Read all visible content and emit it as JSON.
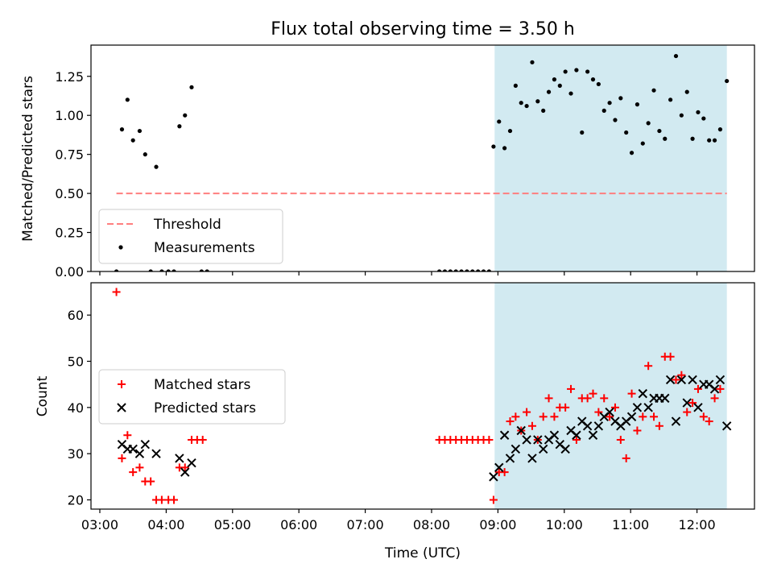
{
  "figure": {
    "title": "Flux total observing time = 3.50 h",
    "colors": {
      "shade": "#add8e6",
      "threshold": "#ff7f7f",
      "measure": "#000000",
      "matched": "#ff0000",
      "predicted": "#000000"
    }
  },
  "chart_data": [
    {
      "type": "scatter",
      "ylabel": "Matched/Predicted stars",
      "xlim": [
        "02:52",
        "12:52"
      ],
      "ylim": [
        0,
        1.45
      ],
      "yticks": [
        0.0,
        0.25,
        0.5,
        0.75,
        1.0,
        1.25
      ],
      "ytick_labels": [
        "0.00",
        "0.25",
        "0.50",
        "0.75",
        "1.00",
        "1.25"
      ],
      "shaded_span": [
        "08:57",
        "12:27"
      ],
      "legend": {
        "placement": "lower-left",
        "entries": [
          "Threshold",
          "Measurements"
        ]
      },
      "threshold": {
        "name": "Threshold",
        "y": 0.5,
        "x": [
          "03:15",
          "12:27"
        ]
      },
      "series": [
        {
          "name": "Measurements",
          "points": [
            [
              "03:15",
              0
            ],
            [
              "03:20",
              0.91
            ],
            [
              "03:25",
              1.1
            ],
            [
              "03:30",
              0.84
            ],
            [
              "03:36",
              0.9
            ],
            [
              "03:41",
              0.75
            ],
            [
              "03:46",
              0
            ],
            [
              "03:51",
              0.67
            ],
            [
              "03:56",
              0
            ],
            [
              "04:02",
              0
            ],
            [
              "04:07",
              0
            ],
            [
              "04:12",
              0.93
            ],
            [
              "04:17",
              1.0
            ],
            [
              "04:23",
              1.18
            ],
            [
              "04:32",
              0
            ],
            [
              "04:37",
              0
            ],
            [
              "08:07",
              0
            ],
            [
              "08:12",
              0
            ],
            [
              "08:17",
              0
            ],
            [
              "08:22",
              0
            ],
            [
              "08:27",
              0
            ],
            [
              "08:32",
              0
            ],
            [
              "08:37",
              0
            ],
            [
              "08:42",
              0
            ],
            [
              "08:47",
              0
            ],
            [
              "08:52",
              0
            ],
            [
              "08:56",
              0.8
            ],
            [
              "09:01",
              0.96
            ],
            [
              "09:06",
              0.79
            ],
            [
              "09:11",
              0.9
            ],
            [
              "09:16",
              1.19
            ],
            [
              "09:21",
              1.08
            ],
            [
              "09:26",
              1.06
            ],
            [
              "09:31",
              1.34
            ],
            [
              "09:36",
              1.09
            ],
            [
              "09:41",
              1.03
            ],
            [
              "09:46",
              1.15
            ],
            [
              "09:51",
              1.23
            ],
            [
              "09:56",
              1.19
            ],
            [
              "10:01",
              1.28
            ],
            [
              "10:06",
              1.14
            ],
            [
              "10:11",
              1.29
            ],
            [
              "10:16",
              0.89
            ],
            [
              "10:21",
              1.28
            ],
            [
              "10:26",
              1.23
            ],
            [
              "10:31",
              1.2
            ],
            [
              "10:36",
              1.03
            ],
            [
              "10:41",
              1.08
            ],
            [
              "10:46",
              0.97
            ],
            [
              "10:51",
              1.11
            ],
            [
              "10:56",
              0.89
            ],
            [
              "11:01",
              0.76
            ],
            [
              "11:06",
              1.07
            ],
            [
              "11:11",
              0.82
            ],
            [
              "11:16",
              0.95
            ],
            [
              "11:21",
              1.16
            ],
            [
              "11:26",
              0.9
            ],
            [
              "11:31",
              0.85
            ],
            [
              "11:36",
              1.1
            ],
            [
              "11:41",
              1.38
            ],
            [
              "11:46",
              1.0
            ],
            [
              "11:51",
              1.15
            ],
            [
              "11:56",
              0.85
            ],
            [
              "12:01",
              1.02
            ],
            [
              "12:06",
              0.98
            ],
            [
              "12:11",
              0.84
            ],
            [
              "12:16",
              0.84
            ],
            [
              "12:21",
              0.91
            ],
            [
              "12:27",
              1.22
            ]
          ]
        }
      ]
    },
    {
      "type": "scatter",
      "xlabel": "Time (UTC)",
      "ylabel": "Count",
      "xlim": [
        "02:52",
        "12:52"
      ],
      "xticks": [
        "03:00",
        "04:00",
        "05:00",
        "06:00",
        "07:00",
        "08:00",
        "09:00",
        "10:00",
        "11:00",
        "12:00"
      ],
      "ylim": [
        18,
        67
      ],
      "yticks": [
        20,
        30,
        40,
        50,
        60
      ],
      "ytick_labels": [
        "20",
        "30",
        "40",
        "50",
        "60"
      ],
      "shaded_span": [
        "08:57",
        "12:27"
      ],
      "legend": {
        "placement": "center-left",
        "entries": [
          "Matched stars",
          "Predicted stars"
        ]
      },
      "series": [
        {
          "name": "Matched stars",
          "marker": "plus",
          "points": [
            [
              "03:15",
              65
            ],
            [
              "03:20",
              29
            ],
            [
              "03:25",
              34
            ],
            [
              "03:30",
              26
            ],
            [
              "03:36",
              27
            ],
            [
              "03:41",
              24
            ],
            [
              "03:46",
              24
            ],
            [
              "03:51",
              20
            ],
            [
              "03:56",
              20
            ],
            [
              "04:02",
              20
            ],
            [
              "04:07",
              20
            ],
            [
              "04:12",
              27
            ],
            [
              "04:17",
              27
            ],
            [
              "04:23",
              33
            ],
            [
              "04:28",
              33
            ],
            [
              "04:33",
              33
            ],
            [
              "08:07",
              33
            ],
            [
              "08:12",
              33
            ],
            [
              "08:17",
              33
            ],
            [
              "08:22",
              33
            ],
            [
              "08:27",
              33
            ],
            [
              "08:32",
              33
            ],
            [
              "08:37",
              33
            ],
            [
              "08:42",
              33
            ],
            [
              "08:47",
              33
            ],
            [
              "08:52",
              33
            ],
            [
              "08:56",
              20
            ],
            [
              "09:01",
              26
            ],
            [
              "09:06",
              26
            ],
            [
              "09:11",
              37
            ],
            [
              "09:16",
              38
            ],
            [
              "09:21",
              35
            ],
            [
              "09:26",
              39
            ],
            [
              "09:31",
              36
            ],
            [
              "09:36",
              33
            ],
            [
              "09:41",
              38
            ],
            [
              "09:46",
              42
            ],
            [
              "09:51",
              38
            ],
            [
              "09:56",
              40
            ],
            [
              "10:01",
              40
            ],
            [
              "10:06",
              44
            ],
            [
              "10:11",
              33
            ],
            [
              "10:16",
              42
            ],
            [
              "10:21",
              42
            ],
            [
              "10:26",
              43
            ],
            [
              "10:31",
              39
            ],
            [
              "10:36",
              42
            ],
            [
              "10:41",
              38
            ],
            [
              "10:46",
              40
            ],
            [
              "10:51",
              33
            ],
            [
              "10:56",
              29
            ],
            [
              "11:01",
              43
            ],
            [
              "11:06",
              35
            ],
            [
              "11:11",
              38
            ],
            [
              "11:16",
              49
            ],
            [
              "11:21",
              38
            ],
            [
              "11:26",
              36
            ],
            [
              "11:31",
              51
            ],
            [
              "11:36",
              51
            ],
            [
              "11:41",
              46
            ],
            [
              "11:46",
              47
            ],
            [
              "11:51",
              39
            ],
            [
              "11:56",
              41
            ],
            [
              "12:01",
              44
            ],
            [
              "12:06",
              38
            ],
            [
              "12:11",
              37
            ],
            [
              "12:16",
              42
            ],
            [
              "12:21",
              44
            ]
          ]
        },
        {
          "name": "Predicted stars",
          "marker": "x",
          "points": [
            [
              "03:20",
              32
            ],
            [
              "03:25",
              31
            ],
            [
              "03:30",
              31
            ],
            [
              "03:36",
              30
            ],
            [
              "03:41",
              32
            ],
            [
              "03:51",
              30
            ],
            [
              "04:12",
              29
            ],
            [
              "04:17",
              26
            ],
            [
              "04:23",
              28
            ],
            [
              "08:56",
              25
            ],
            [
              "09:01",
              27
            ],
            [
              "09:06",
              34
            ],
            [
              "09:11",
              29
            ],
            [
              "09:16",
              31
            ],
            [
              "09:21",
              35
            ],
            [
              "09:26",
              33
            ],
            [
              "09:31",
              29
            ],
            [
              "09:36",
              33
            ],
            [
              "09:41",
              31
            ],
            [
              "09:46",
              33
            ],
            [
              "09:51",
              34
            ],
            [
              "09:56",
              32
            ],
            [
              "10:01",
              31
            ],
            [
              "10:06",
              35
            ],
            [
              "10:11",
              34
            ],
            [
              "10:16",
              37
            ],
            [
              "10:21",
              36
            ],
            [
              "10:26",
              34
            ],
            [
              "10:31",
              36
            ],
            [
              "10:36",
              38
            ],
            [
              "10:41",
              39
            ],
            [
              "10:46",
              37
            ],
            [
              "10:51",
              36
            ],
            [
              "10:56",
              37
            ],
            [
              "11:01",
              38
            ],
            [
              "11:06",
              40
            ],
            [
              "11:11",
              43
            ],
            [
              "11:16",
              40
            ],
            [
              "11:21",
              42
            ],
            [
              "11:26",
              42
            ],
            [
              "11:31",
              42
            ],
            [
              "11:36",
              46
            ],
            [
              "11:41",
              37
            ],
            [
              "11:46",
              46
            ],
            [
              "11:51",
              41
            ],
            [
              "11:56",
              46
            ],
            [
              "12:01",
              40
            ],
            [
              "12:06",
              45
            ],
            [
              "12:11",
              45
            ],
            [
              "12:16",
              44
            ],
            [
              "12:21",
              46
            ],
            [
              "12:27",
              36
            ]
          ]
        }
      ]
    }
  ]
}
